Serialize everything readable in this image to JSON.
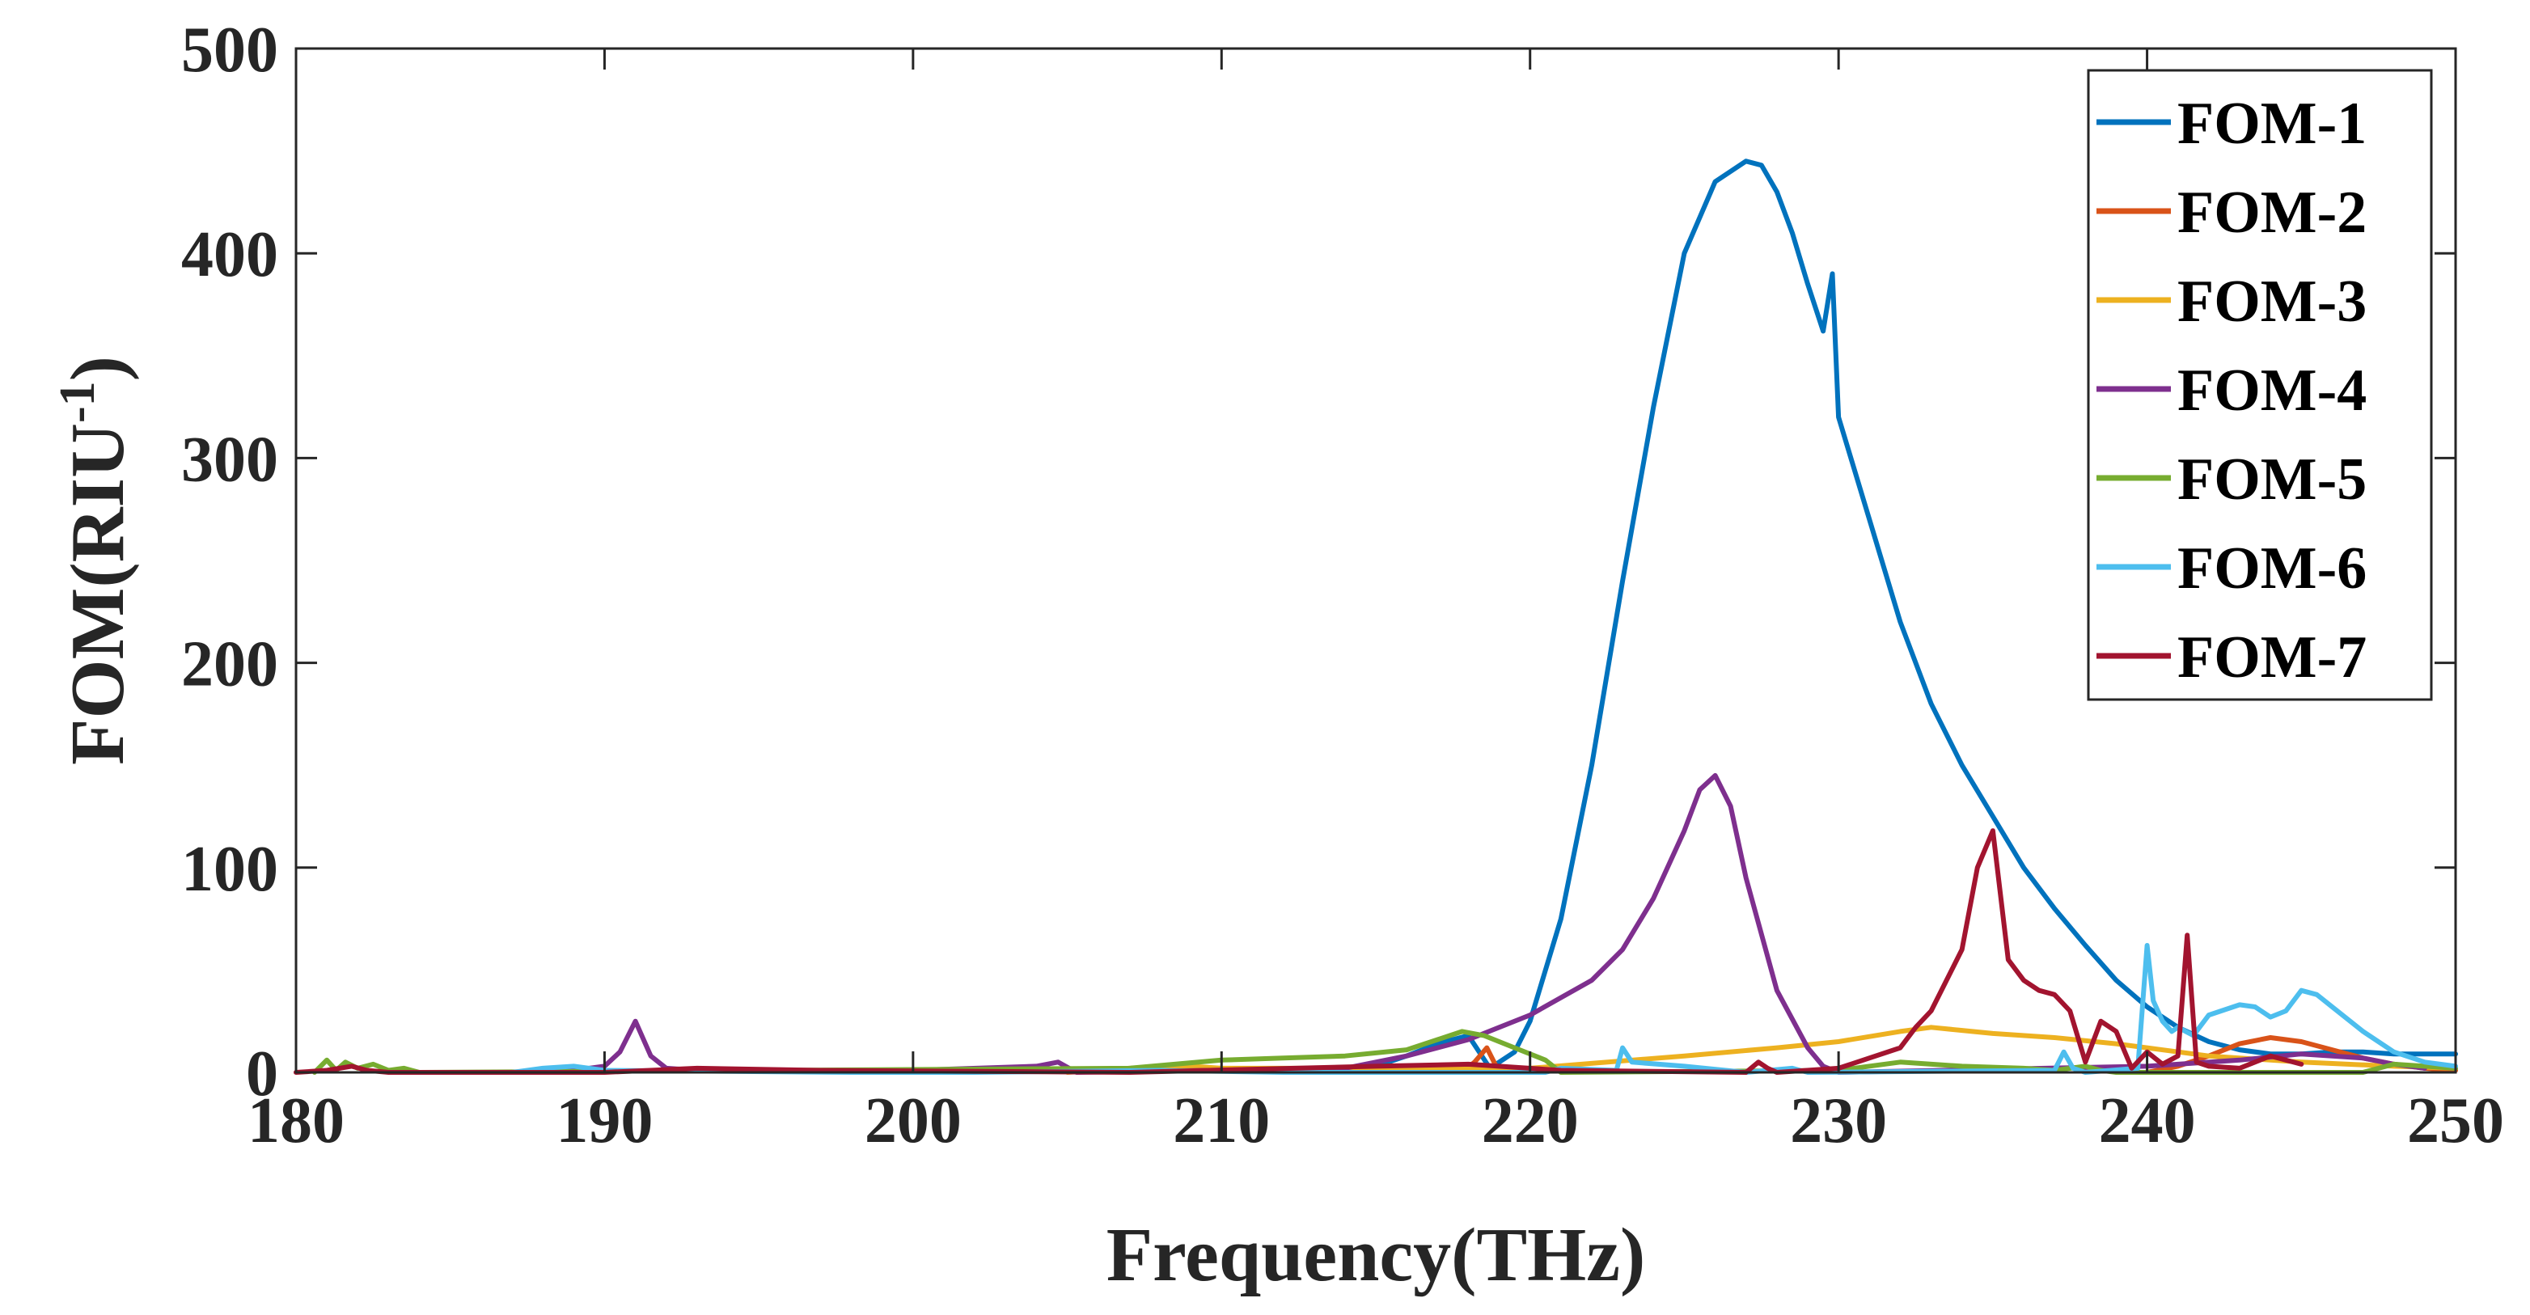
{
  "chart_data": {
    "type": "line",
    "title": "",
    "xlabel": "Frequency(THz)",
    "ylabel_main": "FOM(RIU",
    "ylabel_sup": "-1",
    "ylabel_close": ")",
    "xlim": [
      180,
      250
    ],
    "ylim": [
      0,
      500
    ],
    "xticks": [
      180,
      190,
      200,
      210,
      220,
      230,
      240,
      250
    ],
    "yticks": [
      0,
      100,
      200,
      300,
      400,
      500
    ],
    "grid": false,
    "legend_position": "top-right",
    "series": [
      {
        "name": "FOM-1",
        "color": "#0072BD",
        "x": [
          215,
          216,
          217,
          218,
          218.7,
          219.5,
          220,
          221,
          222,
          223,
          224,
          225,
          226,
          227,
          227.5,
          228,
          228.5,
          229,
          229.5,
          229.8,
          230,
          231,
          232,
          233,
          234,
          235,
          236,
          237,
          238,
          239,
          240,
          241,
          242,
          243,
          244,
          245,
          246,
          247,
          248,
          249,
          250
        ],
        "y": [
          3,
          8,
          14,
          18,
          2,
          10,
          25,
          75,
          150,
          240,
          325,
          400,
          435,
          445,
          443,
          430,
          410,
          385,
          362,
          390,
          320,
          270,
          220,
          180,
          150,
          125,
          100,
          80,
          62,
          45,
          32,
          22,
          15,
          11,
          9,
          9,
          10,
          10,
          9,
          9,
          9
        ]
      },
      {
        "name": "FOM-2",
        "color": "#D95319",
        "x": [
          217.8,
          218.2,
          218.6,
          219,
          240,
          241,
          242,
          243,
          244,
          245,
          246,
          247,
          248,
          249,
          250
        ],
        "y": [
          0,
          5,
          12,
          0,
          0,
          3,
          8,
          14,
          17,
          15,
          11,
          7,
          4,
          2,
          1
        ],
        "breaks_after": [
          3
        ]
      },
      {
        "name": "FOM-3",
        "color": "#EDB120",
        "x": [
          205,
          207,
          209,
          210,
          220,
          225,
          228,
          230,
          232,
          233,
          235,
          237,
          239,
          240,
          242,
          245,
          248,
          250
        ],
        "y": [
          0,
          2,
          3,
          2,
          2,
          8,
          12,
          15,
          20,
          22,
          19,
          17,
          14,
          12,
          8,
          5,
          3,
          2
        ]
      },
      {
        "name": "FOM-4",
        "color": "#7E2F8E",
        "x": [
          187,
          189,
          190,
          190.5,
          191,
          191.5,
          192,
          193,
          195,
          200,
          204,
          204.7,
          205.3,
          214,
          216,
          218,
          220,
          222,
          223,
          224,
          225,
          225.5,
          226,
          226.5,
          227,
          228,
          229,
          229.5,
          230,
          240,
          243,
          245,
          247,
          248,
          249
        ],
        "y": [
          0,
          1,
          3,
          10,
          25,
          8,
          2,
          1,
          1,
          1,
          3,
          5,
          0,
          2,
          8,
          16,
          28,
          45,
          60,
          85,
          118,
          138,
          145,
          130,
          95,
          40,
          12,
          3,
          0,
          3,
          6,
          9,
          7,
          4,
          2
        ]
      },
      {
        "name": "FOM-5",
        "color": "#77AC30",
        "x": [
          180.6,
          181,
          181.3,
          181.6,
          182,
          182.5,
          183,
          183.5,
          184,
          207,
          210,
          212,
          214,
          216,
          217,
          217.8,
          218.5,
          219.5,
          220.5,
          221,
          230,
          232,
          234,
          236,
          237,
          238,
          238.5,
          239,
          247,
          248,
          249,
          250
        ],
        "y": [
          0,
          6,
          1,
          5,
          2,
          4,
          1,
          2,
          0,
          2,
          6,
          7,
          8,
          11,
          16,
          20,
          18,
          12,
          6,
          0,
          1,
          5,
          3,
          2,
          1,
          3,
          1,
          0,
          0,
          4,
          3,
          2
        ]
      },
      {
        "name": "FOM-6",
        "color": "#4DBEEE",
        "x": [
          187,
          188,
          189,
          190,
          198,
          202,
          208,
          212,
          220.5,
          221,
          222.8,
          223,
          223.3,
          225,
          227,
          228.5,
          229,
          237,
          237.3,
          237.6,
          238,
          239.7,
          240,
          240.2,
          240.5,
          240.8,
          241,
          241.5,
          242,
          243,
          243.5,
          244,
          244.5,
          245,
          245.5,
          246,
          247,
          248,
          249,
          250
        ],
        "y": [
          0,
          2,
          3,
          1,
          0,
          0,
          1,
          0,
          0,
          2,
          1,
          12,
          5,
          3,
          0,
          2,
          0,
          1,
          10,
          2,
          0,
          2,
          62,
          35,
          25,
          20,
          22,
          18,
          28,
          33,
          32,
          27,
          30,
          40,
          38,
          32,
          20,
          10,
          5,
          3
        ]
      },
      {
        "name": "FOM-7",
        "color": "#A2142F",
        "x": [
          180,
          181,
          181.8,
          182.3,
          183,
          190,
          193,
          197,
          207,
          215,
          218,
          221,
          227,
          227.4,
          227.7,
          228,
          230,
          232,
          232.5,
          233,
          234,
          234.5,
          235,
          235.5,
          236,
          236.5,
          237,
          237.5,
          238,
          238.5,
          239,
          239.5,
          240,
          240.5,
          241,
          241.3,
          241.6,
          242,
          243,
          244,
          245
        ],
        "y": [
          0,
          1,
          3,
          1,
          0,
          0,
          2,
          1,
          0,
          3,
          4,
          1,
          0,
          5,
          2,
          0,
          2,
          12,
          22,
          30,
          60,
          100,
          118,
          55,
          45,
          40,
          38,
          30,
          5,
          25,
          20,
          2,
          10,
          4,
          8,
          67,
          5,
          3,
          2,
          8,
          4
        ]
      }
    ]
  }
}
